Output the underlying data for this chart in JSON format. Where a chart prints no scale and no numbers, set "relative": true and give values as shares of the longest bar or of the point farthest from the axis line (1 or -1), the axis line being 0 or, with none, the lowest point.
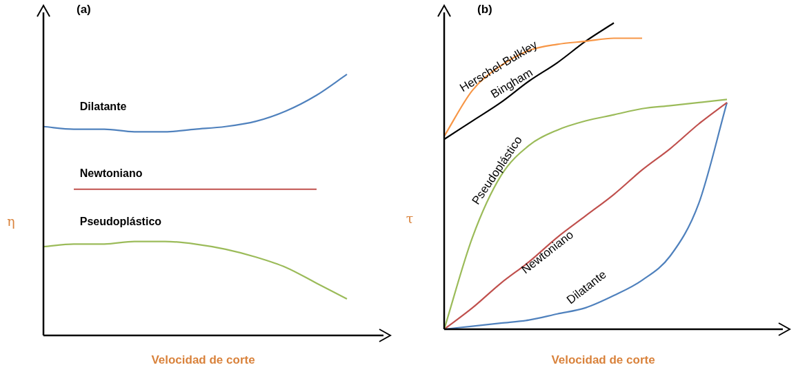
{
  "chart_data": [
    {
      "type": "line",
      "title": "(a)",
      "xlabel": "Velocidad de corte",
      "ylabel": "η",
      "relative": true,
      "legend": false,
      "marker": "none",
      "categories": [
        null,
        null,
        null,
        null,
        null,
        null,
        null,
        null,
        null,
        null,
        null,
        null
      ],
      "series": [
        {
          "name": "Dilatante",
          "color": "#4f81bd",
          "values": [
            0.8,
            0.79,
            0.79,
            0.78,
            0.78,
            0.79,
            0.8,
            0.82,
            0.86,
            0.92,
            1,
            null
          ]
        },
        {
          "name": "Newtoniano",
          "color": "#c0504d",
          "values": [
            null,
            0.56,
            0.56,
            0.56,
            0.56,
            0.56,
            0.56,
            0.56,
            0.56,
            0.56,
            null,
            null
          ]
        },
        {
          "name": "Pseudoplástico",
          "color": "#9bbb59",
          "values": [
            0.34,
            0.35,
            0.35,
            0.36,
            0.36,
            0.35,
            0.33,
            0.3,
            0.26,
            0.2,
            0.14,
            null
          ]
        }
      ]
    },
    {
      "type": "line",
      "title": "(b)",
      "xlabel": "Velocidad de corte",
      "ylabel": "τ",
      "relative": true,
      "legend": false,
      "marker": "none",
      "categories": [
        null,
        null,
        null,
        null,
        null,
        null,
        null,
        null,
        null,
        null,
        null,
        null,
        null
      ],
      "series": [
        {
          "name": "Herschel-Bulkley",
          "color": "#f79646",
          "values": [
            0.63,
            0.78,
            0.86,
            0.91,
            0.93,
            0.94,
            0.95,
            0.95,
            null,
            null,
            null,
            null,
            null
          ]
        },
        {
          "name": "Bingham",
          "color": "#000000",
          "values": [
            0.62,
            0.68,
            0.74,
            0.81,
            0.87,
            0.94,
            1,
            null,
            null,
            null,
            null,
            null,
            null
          ]
        },
        {
          "name": "Pseudoplástico",
          "color": "#9bbb59",
          "values": [
            0,
            0.3,
            0.5,
            0.6,
            0.65,
            0.68,
            0.7,
            0.72,
            0.73,
            0.74,
            0.75,
            null,
            null
          ]
        },
        {
          "name": "Newtoniano",
          "color": "#c0504d",
          "values": [
            0,
            0.07,
            0.15,
            0.22,
            0.3,
            0.37,
            0.44,
            0.52,
            0.59,
            0.67,
            0.74,
            null,
            null
          ]
        },
        {
          "name": "Dilatante",
          "color": "#4f81bd",
          "values": [
            0,
            0.01,
            0.02,
            0.03,
            0.05,
            0.07,
            0.11,
            0.16,
            0.24,
            0.41,
            0.74,
            null,
            null
          ]
        }
      ]
    }
  ]
}
